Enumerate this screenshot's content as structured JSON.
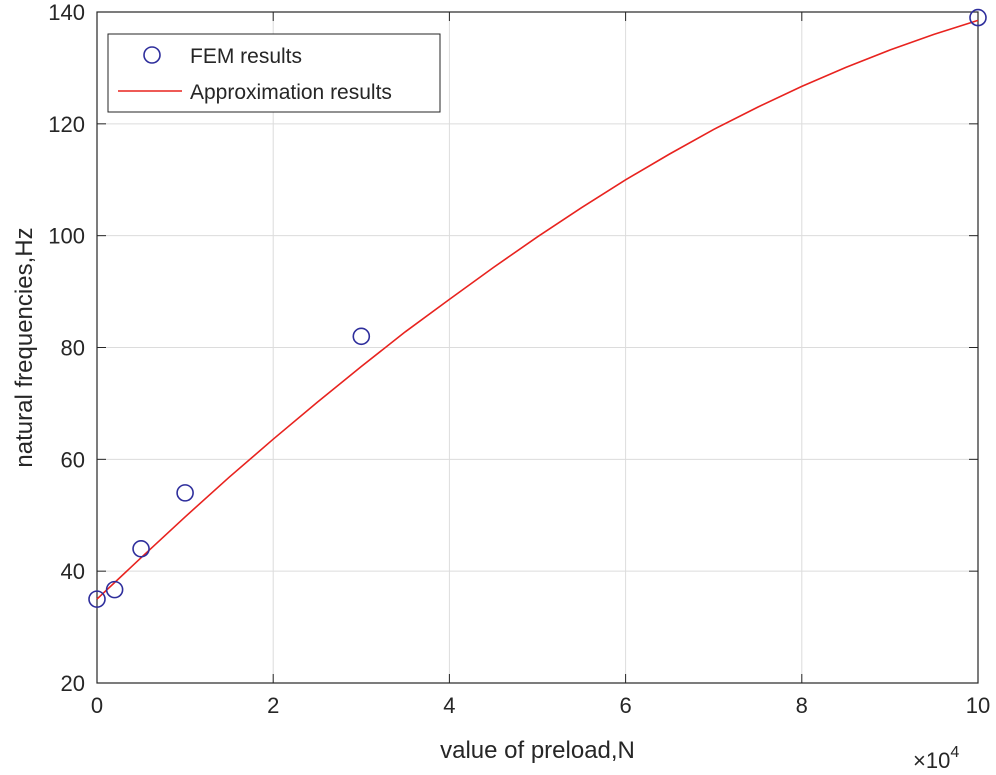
{
  "chart_data": {
    "type": "scatter",
    "title": "",
    "xlabel": "value of preload,N",
    "ylabel": "natural frequencies,Hz",
    "x_scale_label": "×10",
    "x_scale_power": "4",
    "xlim": [
      0,
      10
    ],
    "ylim": [
      20,
      140
    ],
    "xticks": [
      0,
      2,
      4,
      6,
      8,
      10
    ],
    "xtick_labels": [
      "0",
      "2",
      "4",
      "6",
      "8",
      "10"
    ],
    "yticks": [
      20,
      40,
      60,
      80,
      100,
      120,
      140
    ],
    "ytick_labels": [
      "20",
      "40",
      "60",
      "80",
      "100",
      "120",
      "140"
    ],
    "grid": true,
    "legend_position": "top-left",
    "series": [
      {
        "name": "FEM results",
        "kind": "markers",
        "marker": "circle",
        "color": "#2e2e9c",
        "x": [
          0,
          0.2,
          0.5,
          1,
          3,
          10
        ],
        "y": [
          35,
          36.7,
          44,
          54,
          82,
          139
        ]
      },
      {
        "name": "Approximation results",
        "kind": "line",
        "color": "#e8231f",
        "x": [
          0,
          0.5,
          1,
          1.5,
          2,
          2.5,
          3,
          3.5,
          4,
          4.5,
          5,
          5.5,
          6,
          6.5,
          7,
          7.5,
          8,
          8.5,
          9,
          9.5,
          10
        ],
        "y": [
          35,
          42.4,
          49.7,
          56.8,
          63.6,
          70.2,
          76.6,
          82.8,
          88.6,
          94.3,
          99.8,
          105.0,
          110.0,
          114.6,
          119.0,
          123.0,
          126.7,
          130.1,
          133.2,
          136.0,
          138.5
        ]
      }
    ]
  }
}
